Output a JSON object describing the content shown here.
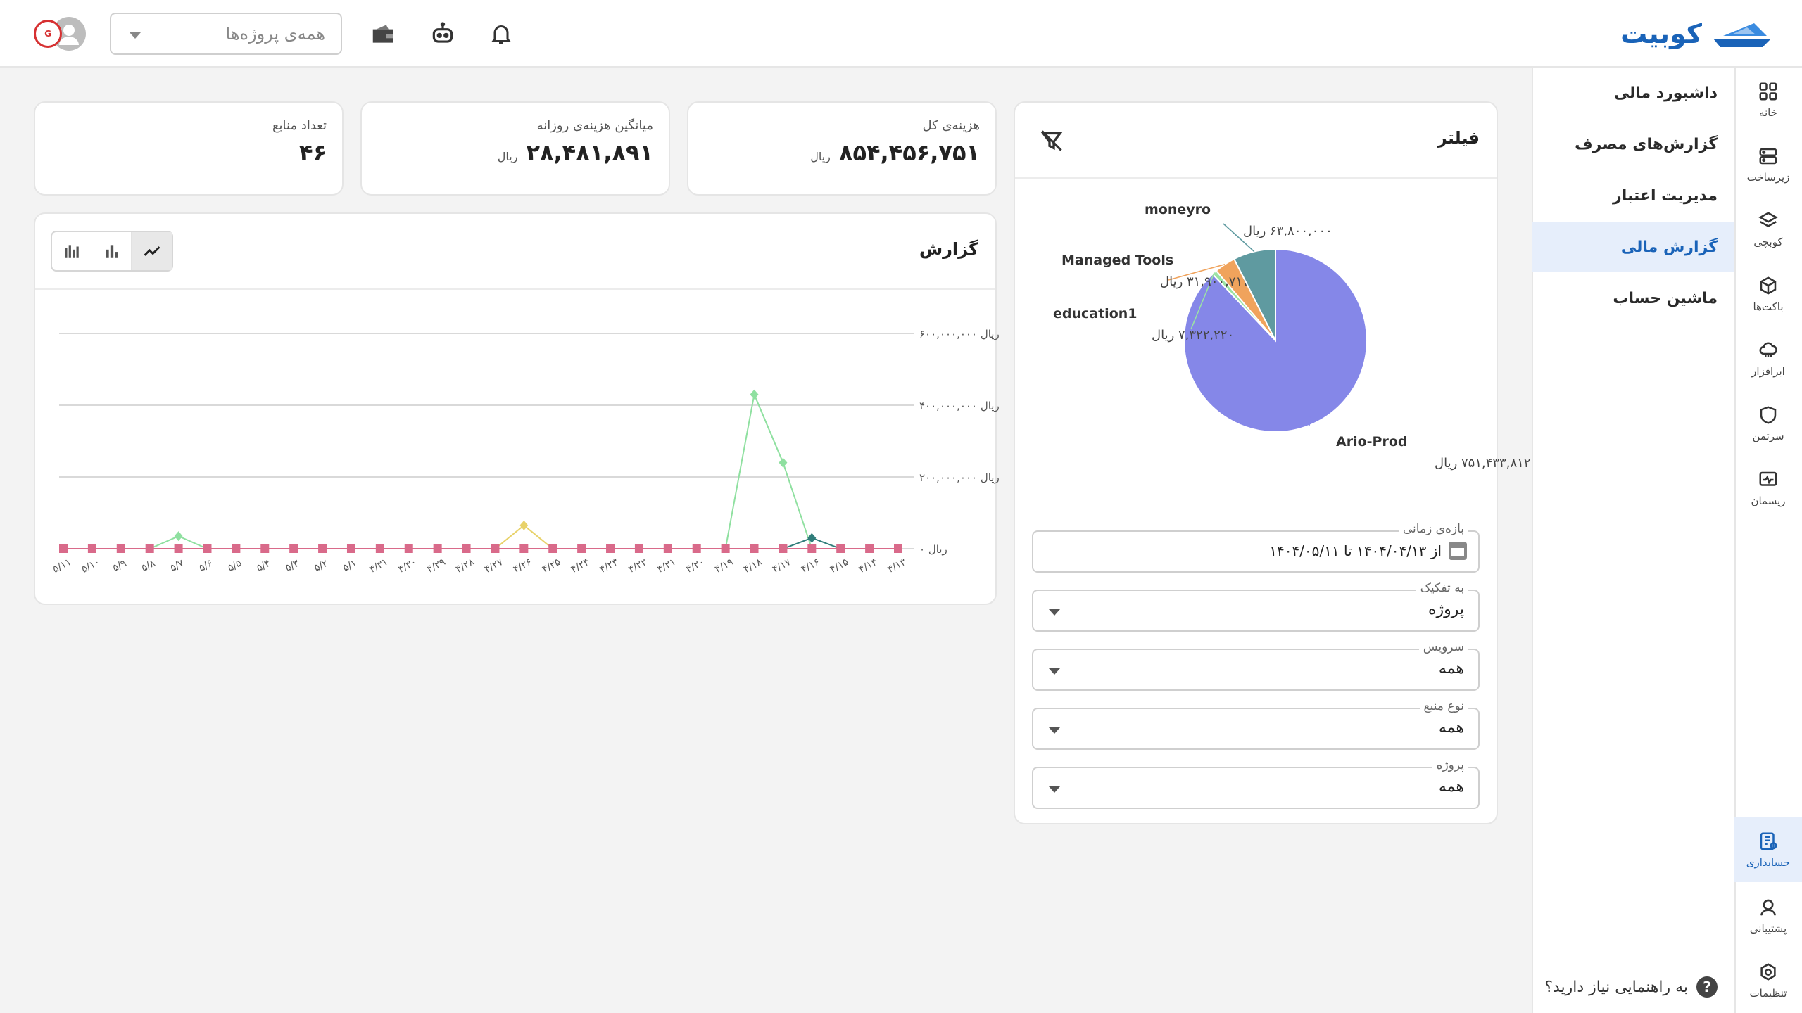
{
  "app": {
    "logo_text": "کوبیت",
    "project_select_placeholder": "همه‌ی پروژه‌ها",
    "avatar_badge": "G"
  },
  "rail": [
    {
      "label": "خانه",
      "icon": "grid-icon"
    },
    {
      "label": "زیرساخت",
      "icon": "server-icon"
    },
    {
      "label": "کوبچی",
      "icon": "layers-icon"
    },
    {
      "label": "باکت‌ها",
      "icon": "box-icon"
    },
    {
      "label": "ابرافزار",
      "icon": "cloud-app-icon"
    },
    {
      "label": "سرتمن",
      "icon": "shield-icon"
    },
    {
      "label": "ریسمان",
      "icon": "monitor-wave-icon"
    },
    {
      "label": "حسابداری",
      "icon": "accounting-icon",
      "active": true
    },
    {
      "label": "پشتیبانی",
      "icon": "support-icon"
    },
    {
      "label": "تنظیمات",
      "icon": "gear-icon"
    }
  ],
  "subnav": [
    {
      "label": "داشبورد مالی"
    },
    {
      "label": "گزارش‌های مصرف"
    },
    {
      "label": "مدیریت اعتبار"
    },
    {
      "label": "گزارش مالی",
      "active": true
    },
    {
      "label": "ماشین حساب"
    }
  ],
  "help_text": "به راهنمایی نیاز دارید؟",
  "help_mark": "?",
  "stats": {
    "total": {
      "title": "هزینه‌ی کل",
      "value": "۸۵۴,۴۵۶,۷۵۱",
      "unit": "ریال"
    },
    "daily": {
      "title": "میانگین هزینه‌ی روزانه",
      "value": "۲۸,۴۸۱,۸۹۱",
      "unit": "ریال"
    },
    "resources": {
      "title": "تعداد منابع",
      "value": "۴۶"
    }
  },
  "report": {
    "title": "گزارش"
  },
  "filter": {
    "title": "فیلتر",
    "fields": [
      {
        "label": "بازه‌ی زمانی",
        "value": "از ۱۴۰۴/۰۴/۱۳ تا ۱۴۰۴/۰۵/۱۱",
        "type": "date"
      },
      {
        "label": "به تفکیک",
        "value": "پروژه"
      },
      {
        "label": "سرویس",
        "value": "همه"
      },
      {
        "label": "نوع منبع",
        "value": "همه"
      },
      {
        "label": "پروژه",
        "value": "همه"
      }
    ]
  },
  "chart_data": [
    {
      "type": "line",
      "title": "",
      "y_ticks": [
        "۶۰۰,۰۰۰,۰۰۰ ریال",
        "۴۰۰,۰۰۰,۰۰۰ ریال",
        "۲۰۰,۰۰۰,۰۰۰ ریال",
        "۰ ریال"
      ],
      "ylim": [
        0,
        600000000
      ],
      "categories": [
        "۵/۱۱",
        "۵/۱۰",
        "۵/۹",
        "۵/۸",
        "۵/۷",
        "۵/۶",
        "۵/۵",
        "۵/۴",
        "۵/۳",
        "۵/۲",
        "۵/۱",
        "۴/۳۱",
        "۴/۳۰",
        "۴/۲۹",
        "۴/۲۸",
        "۴/۲۷",
        "۴/۲۶",
        "۴/۲۵",
        "۴/۲۴",
        "۴/۲۳",
        "۴/۲۲",
        "۴/۲۱",
        "۴/۲۰",
        "۴/۱۹",
        "۴/۱۸",
        "۴/۱۷",
        "۴/۱۶",
        "۴/۱۵",
        "۴/۱۴",
        "۴/۱۳"
      ],
      "series": [
        {
          "name": "",
          "color": "#8fe0a0",
          "values": [
            0,
            0,
            0,
            0,
            35000000,
            0,
            0,
            0,
            0,
            0,
            0,
            0,
            0,
            0,
            0,
            0,
            0,
            0,
            0,
            0,
            0,
            0,
            0,
            0,
            430000000,
            240000000,
            0,
            0,
            0,
            0
          ]
        },
        {
          "name": "",
          "color": "#e8d26a",
          "values": [
            0,
            0,
            0,
            0,
            0,
            0,
            0,
            0,
            0,
            0,
            0,
            0,
            0,
            0,
            0,
            0,
            65000000,
            0,
            0,
            0,
            0,
            0,
            0,
            0,
            0,
            0,
            0,
            0,
            0,
            0
          ]
        },
        {
          "name": "",
          "color": "#2f7d7a",
          "values": [
            0,
            0,
            0,
            0,
            0,
            0,
            0,
            0,
            0,
            0,
            0,
            0,
            0,
            0,
            0,
            0,
            0,
            0,
            0,
            0,
            0,
            0,
            0,
            0,
            0,
            0,
            30000000,
            0,
            0,
            0
          ]
        },
        {
          "name": "",
          "color": "#d96a8a",
          "values": [
            0,
            0,
            0,
            0,
            0,
            0,
            0,
            0,
            0,
            0,
            0,
            0,
            0,
            0,
            0,
            0,
            0,
            0,
            0,
            0,
            0,
            0,
            0,
            0,
            0,
            0,
            0,
            0,
            0,
            0
          ]
        }
      ],
      "grid": true
    },
    {
      "type": "pie",
      "slices": [
        {
          "name": "Ario-Prod",
          "value_label": "۷۵۱,۴۳۳,۸۱۲ ریال",
          "value": 751433812,
          "color": "#8587e8"
        },
        {
          "name": "education1",
          "value_label": "۷,۳۲۲,۲۲۰ ریال",
          "value": 7322220,
          "color": "#9be3a4"
        },
        {
          "name": "Managed Tools",
          "value_label": "۳۱,۹۰۰,۷۱۷ ریال",
          "value": 31900717,
          "color": "#f0a35c"
        },
        {
          "name": "moneyro",
          "value_label": "۶۳,۸۰۰,۰۰۰ ریال",
          "value": 63800000,
          "color": "#5f9aa0"
        }
      ]
    }
  ]
}
